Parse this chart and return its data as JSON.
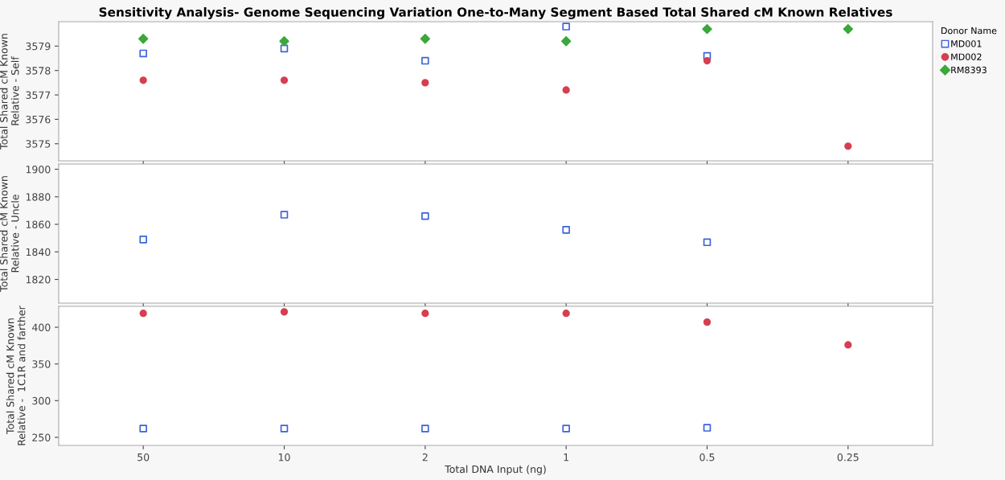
{
  "chart_data": [
    {
      "type": "scatter",
      "title": "Sensitivity Analysis- Genome Sequencing Variation One-to-Many Segment Based Total Shared cM Known Relatives",
      "ylabel": "Total Shared cM Known\nRelative - Self",
      "categories": [
        "50",
        "10",
        "2",
        "1",
        "0.5",
        "0.25"
      ],
      "ylim": [
        3574.3,
        3580.0
      ],
      "yticks": [
        3575,
        3576,
        3577,
        3578,
        3579
      ],
      "tick_labels": "y",
      "grid": false,
      "legend": "right",
      "legend_title": "Donor Name",
      "series": [
        {
          "name": "MD001",
          "color": "#3b63d8",
          "marker": "square",
          "values": [
            3578.7,
            3578.9,
            3578.4,
            3579.8,
            3578.6,
            null
          ]
        },
        {
          "name": "MD002",
          "color": "#d63f4f",
          "marker": "circle",
          "values": [
            3577.6,
            3577.6,
            3577.5,
            3577.2,
            3578.4,
            3574.9
          ]
        },
        {
          "name": "RM8393",
          "color": "#3aa83a",
          "marker": "diamond",
          "values": [
            3579.3,
            3579.2,
            3579.3,
            3579.2,
            3579.7,
            3579.7
          ]
        }
      ]
    },
    {
      "type": "scatter",
      "ylabel": "Total Shared cM Known\nRelative - Uncle",
      "categories": [
        "50",
        "10",
        "2",
        "1",
        "0.5",
        "0.25"
      ],
      "ylim": [
        1802.8,
        1903.8
      ],
      "yticks": [
        1820,
        1840,
        1860,
        1880,
        1900
      ],
      "tick_labels": "y",
      "grid": false,
      "series": [
        {
          "color": "#3b63d8",
          "marker": "square",
          "values": [
            1849,
            1867,
            1866,
            1856,
            1847,
            null
          ]
        }
      ]
    },
    {
      "type": "scatter",
      "ylabel": "Total Shared cM Known\nRelative -  1C1R and farther",
      "xlabel": "Total DNA Input (ng)",
      "categories": [
        "50",
        "10",
        "2",
        "1",
        "0.5",
        "0.25"
      ],
      "ylim": [
        239,
        428.5
      ],
      "yticks": [
        250,
        300,
        350,
        400
      ],
      "grid": false,
      "series": [
        {
          "color": "#3b63d8",
          "marker": "square",
          "values": [
            262,
            262,
            262,
            262,
            263,
            null
          ]
        },
        {
          "color": "#d63f4f",
          "marker": "circle",
          "values": [
            419,
            421,
            419,
            419,
            407,
            376
          ]
        }
      ]
    }
  ]
}
